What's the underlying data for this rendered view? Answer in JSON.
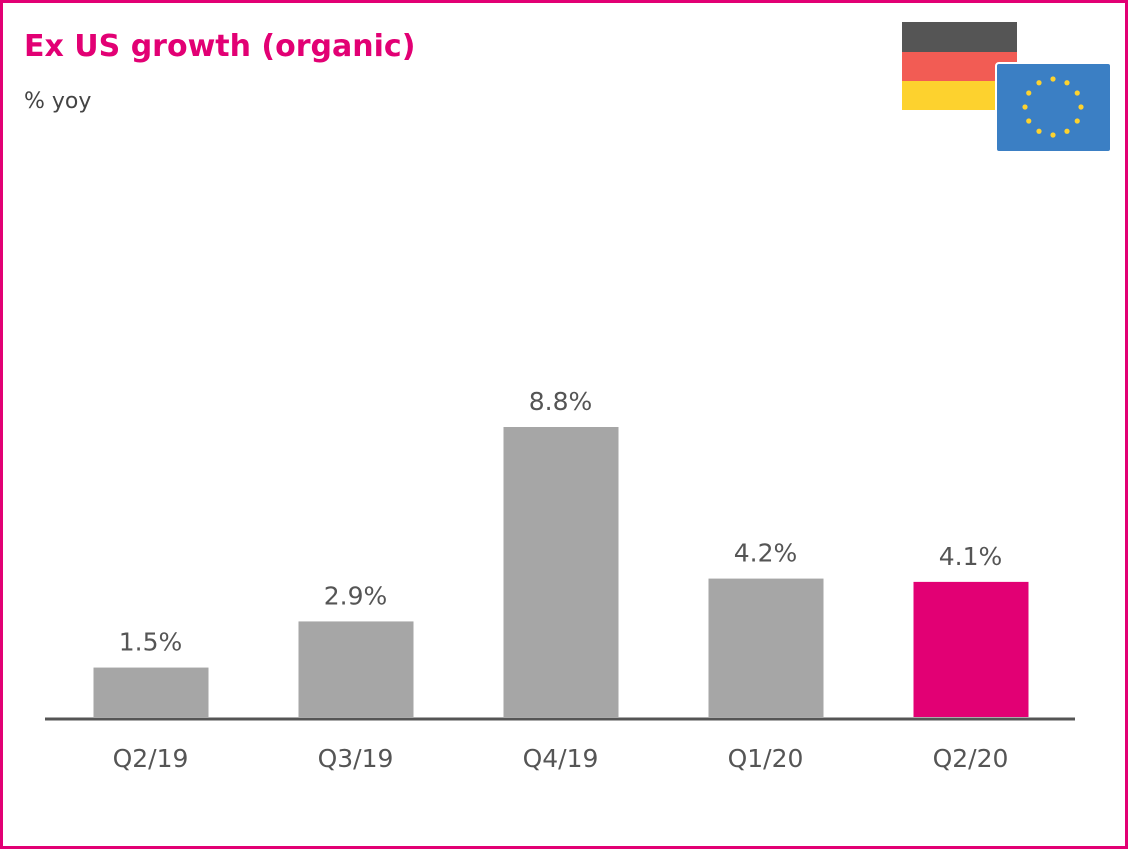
{
  "chart_data": {
    "type": "bar",
    "title": "Ex US growth (organic)",
    "subtitle": "% yoy",
    "categories": [
      "Q2/19",
      "Q3/19",
      "Q4/19",
      "Q1/20",
      "Q2/20"
    ],
    "values": [
      1.5,
      2.9,
      8.8,
      4.2,
      4.1
    ],
    "value_labels": [
      "1.5%",
      "2.9%",
      "8.8%",
      "4.2%",
      "4.1%"
    ],
    "colors": [
      "#a6a6a6",
      "#a6a6a6",
      "#a6a6a6",
      "#a6a6a6",
      "#e20074"
    ]
  }
}
